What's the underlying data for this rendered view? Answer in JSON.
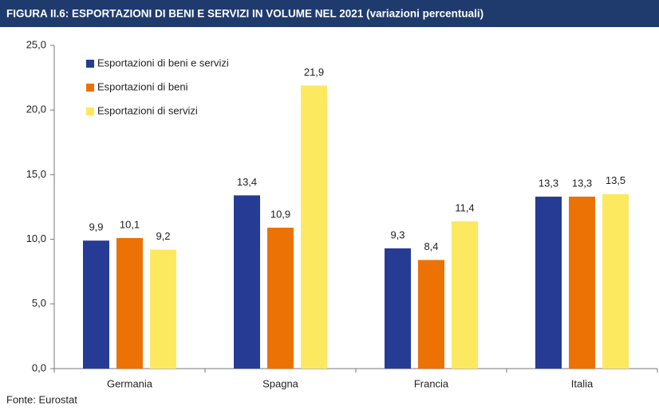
{
  "chart_data": {
    "type": "bar",
    "title": "FIGURA II.6: ESPORTAZIONI DI BENI E SERVIZI IN VOLUME NEL 2021 (variazioni percentuali)",
    "source": "Fonte: Eurostat",
    "categories": [
      "Germania",
      "Spagna",
      "Francia",
      "Italia"
    ],
    "series": [
      {
        "name": "Esportazioni di beni e servizi",
        "color": "#263c94",
        "values": [
          9.9,
          13.4,
          9.3,
          13.3
        ],
        "value_labels": [
          "9,9",
          "13,4",
          "9,3",
          "13,3"
        ]
      },
      {
        "name": "Esportazioni di beni",
        "color": "#ec7206",
        "values": [
          10.1,
          10.9,
          8.4,
          13.3
        ],
        "value_labels": [
          "10,1",
          "10,9",
          "8,4",
          "13,3"
        ]
      },
      {
        "name": "Esportazioni di servizi",
        "color": "#fde960",
        "values": [
          9.2,
          21.9,
          11.4,
          13.5
        ],
        "value_labels": [
          "9,2",
          "21,9",
          "11,4",
          "13,5"
        ]
      }
    ],
    "ylim": [
      0,
      25
    ],
    "yticks": [
      {
        "value": 0,
        "label": "0,0"
      },
      {
        "value": 5,
        "label": "5,0"
      },
      {
        "value": 10,
        "label": "10,0"
      },
      {
        "value": 15,
        "label": "15,0"
      },
      {
        "value": 20,
        "label": "20,0"
      },
      {
        "value": 25,
        "label": "25,0"
      }
    ],
    "grid": false,
    "legend": "upper left"
  }
}
